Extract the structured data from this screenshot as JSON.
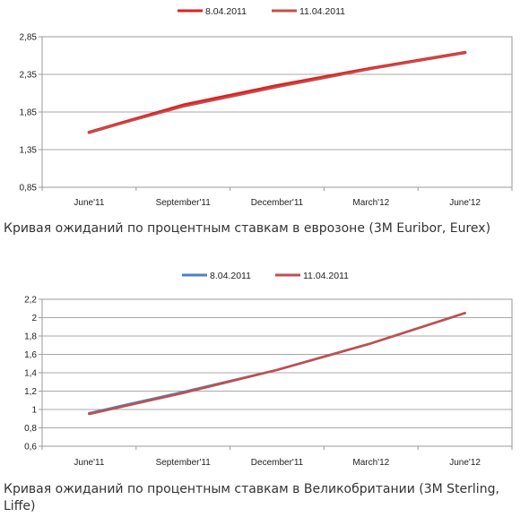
{
  "chart_data": [
    {
      "type": "line",
      "title": "",
      "xlabel": "",
      "ylabel": "",
      "categories": [
        "June'11",
        "September'11",
        "December'11",
        "March'12",
        "June'12"
      ],
      "ylim": [
        0.85,
        2.85
      ],
      "yticks": [
        "0,85",
        "1,35",
        "1,85",
        "2,35",
        "2,85"
      ],
      "grid": true,
      "legend_position": "top",
      "series": [
        {
          "name": "8.04.2011",
          "color": "#e02020",
          "values": [
            1.58,
            1.94,
            2.2,
            2.43,
            2.64
          ]
        },
        {
          "name": "11.04.2011",
          "color": "#c0504d",
          "values": [
            1.58,
            1.92,
            2.18,
            2.42,
            2.64
          ]
        }
      ],
      "caption": "Кривая ожиданий по процентным ставкам в еврозоне (3M Euribor, Eurex)"
    },
    {
      "type": "line",
      "title": "",
      "xlabel": "",
      "ylabel": "",
      "categories": [
        "June'11",
        "September'11",
        "December'11",
        "March'12",
        "June'12"
      ],
      "ylim": [
        0.6,
        2.2
      ],
      "yticks": [
        "0,6",
        "0,8",
        "1",
        "1,2",
        "1,4",
        "1,6",
        "1,8",
        "2",
        "2,2"
      ],
      "grid": true,
      "legend_position": "top",
      "series": [
        {
          "name": "8.04.2011",
          "color": "#4f81bd",
          "values": [
            0.96,
            1.19,
            1.43,
            1.72,
            2.05
          ]
        },
        {
          "name": "11.04.2011",
          "color": "#c0504d",
          "values": [
            0.95,
            1.18,
            1.43,
            1.72,
            2.05
          ]
        }
      ],
      "caption": "Кривая ожиданий по процентным ставкам в Великобритании (3M Sterling, Liffe)"
    }
  ]
}
